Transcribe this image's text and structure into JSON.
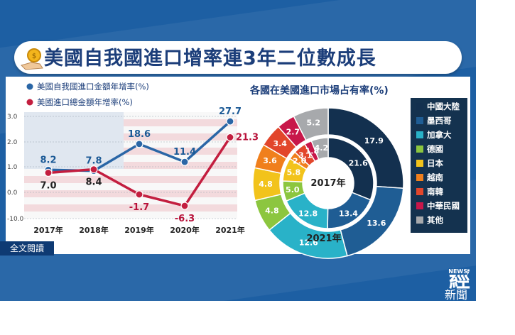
{
  "title": "美國自我國進口增率連3年二位數成長",
  "footer_button": "全文閱讀",
  "logo_text": "經",
  "logo_sub": "新聞",
  "logo_news": "NEWS",
  "colors": {
    "series_import_from_tw": "#2a66a6",
    "series_total_import": "#c31e3f"
  },
  "chart_data": [
    {
      "type": "line",
      "x": [
        "2017年",
        "2018年",
        "2019年",
        "2020年",
        "2021年"
      ],
      "series": [
        {
          "name": "美國自我國進口金額年增率(%)",
          "values": [
            8.2,
            7.8,
            18.6,
            11.4,
            27.7
          ]
        },
        {
          "name": "美國進口總金額年增率(%)",
          "values": [
            7.0,
            8.4,
            -1.7,
            -6.3,
            21.3
          ]
        }
      ],
      "y_ticks": [
        "3.0",
        "2.0",
        "1.0",
        "0.0",
        "-10.0"
      ]
    },
    {
      "type": "pie",
      "title": "各國在美國進口市場占有率(%)",
      "categories": [
        "中國大陸",
        "墨西哥",
        "加拿大",
        "德國",
        "日本",
        "越南",
        "南韓",
        "中華民國",
        "其他"
      ],
      "colors": [
        "#13304f",
        "#1f5d94",
        "#29b2c8",
        "#8cc63f",
        "#f2c31b",
        "#f07f1c",
        "#e2462b",
        "#c8174a",
        "#a7a9ac"
      ],
      "series": [
        {
          "name": "2017年",
          "values": [
            21.6,
            13.4,
            12.8,
            5.0,
            5.8,
            2.0,
            3.1,
            1.8,
            4.2
          ]
        },
        {
          "name": "2021年",
          "values": [
            17.9,
            13.6,
            12.6,
            4.8,
            4.8,
            3.6,
            3.4,
            2.7,
            5.2
          ]
        }
      ]
    }
  ]
}
